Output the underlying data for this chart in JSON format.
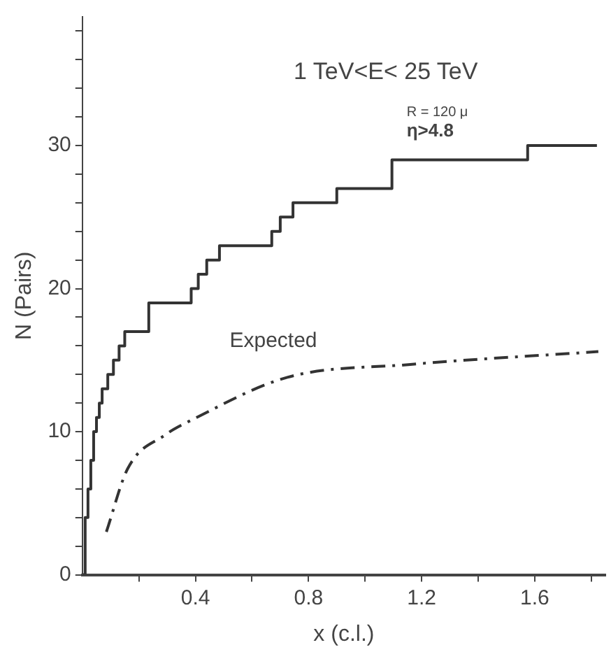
{
  "chart_data": {
    "type": "step",
    "title": "1 TeV<E< 25 TeV",
    "xlabel": "x (c.l.)",
    "ylabel": "N (Pairs)",
    "annotations": [
      "R = 120 μ",
      "η>4.8"
    ],
    "series": [
      {
        "color": "#333333",
        "line_style": "solid",
        "x": [
          0,
          0.01,
          0.02,
          0.03,
          0.04,
          0.05,
          0.06,
          0.07,
          0.09,
          0.11,
          0.13,
          0.15,
          0.235,
          0.385,
          0.41,
          0.44,
          0.485,
          0.67,
          0.7,
          0.745,
          0.9,
          1.095,
          1.575,
          1.82
        ],
        "values": [
          0,
          4,
          6,
          8,
          10,
          11,
          12,
          13,
          14,
          15,
          16,
          17,
          19,
          20,
          21,
          22,
          23,
          24,
          25,
          26,
          27,
          29,
          30,
          30
        ]
      },
      {
        "name": "Expected",
        "type": "line",
        "color": "#333333",
        "line_style": "dashed",
        "x": [
          0.085,
          0.16,
          0.295,
          0.395,
          0.725,
          1.16,
          1.825
        ],
        "values": [
          3,
          7.4,
          9.8,
          10.9,
          13.8,
          14.7,
          15.6
        ]
      }
    ],
    "xlim": [
      0,
      1.85
    ],
    "ylim": [
      0,
      39
    ],
    "xticks": [
      {
        "value": 0.2,
        "label": null
      },
      0.4,
      {
        "value": 0.6,
        "label": null
      },
      0.8,
      {
        "value": 1,
        "label": null
      },
      1.2,
      {
        "value": 1.4,
        "label": null
      },
      1.6,
      {
        "value": 1.8,
        "label": null
      }
    ],
    "yticks": [
      0,
      {
        "value": 2,
        "label": null
      },
      {
        "value": 4,
        "label": null
      },
      {
        "value": 6,
        "label": null
      },
      {
        "value": 8,
        "label": null
      },
      10,
      {
        "value": 12,
        "label": null
      },
      {
        "value": 14,
        "label": null
      },
      {
        "value": 16,
        "label": null
      },
      {
        "value": 18,
        "label": null
      },
      20,
      {
        "value": 22,
        "label": null
      },
      {
        "value": 24,
        "label": null
      },
      {
        "value": 26,
        "label": null
      },
      {
        "value": 28,
        "label": null
      },
      30,
      {
        "value": 32,
        "label": null
      },
      {
        "value": 34,
        "label": null
      },
      {
        "value": 36,
        "label": null
      },
      {
        "value": 38,
        "label": null
      }
    ],
    "grid": false,
    "legend": false,
    "marker": "none"
  }
}
